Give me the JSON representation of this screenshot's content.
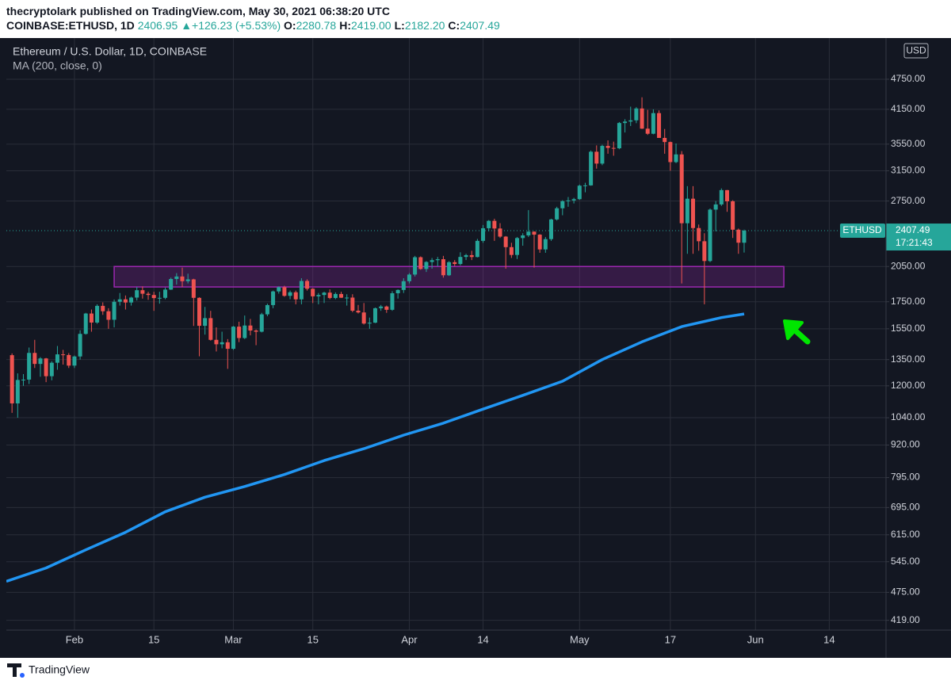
{
  "header": {
    "publisher_line": "thecryptolark published on TradingView.com, May 30, 2021 06:38:20 UTC",
    "symbol": "COINBASE:ETHUSD, 1D",
    "price": "2406.95",
    "change": "+126.23 (+5.53%)",
    "ohlc": [
      {
        "label": "O:",
        "value": "2280.78"
      },
      {
        "label": "H:",
        "value": "2419.00"
      },
      {
        "label": "L:",
        "value": "2182.20"
      },
      {
        "label": "C:",
        "value": "2407.49"
      }
    ]
  },
  "footer": {
    "brand": "TradingView"
  },
  "chart_data": {
    "type": "candlestick",
    "title": "Ethereum / U.S. Dollar, 1D, COINBASE",
    "currency": "USD",
    "up_color": "#26a69a",
    "down_color": "#ef5350",
    "yscale": "log",
    "grid": true,
    "ylim": [
      401,
      5714
    ],
    "yticks": [
      {
        "value": 4750,
        "label": "4750.00"
      },
      {
        "value": 4150,
        "label": "4150.00"
      },
      {
        "value": 3550,
        "label": "3550.00"
      },
      {
        "value": 3150,
        "label": "3150.00"
      },
      {
        "value": 2750,
        "label": "2750.00"
      },
      {
        "value": 2050,
        "label": "2050.00"
      },
      {
        "value": 1750,
        "label": "1750.00"
      },
      {
        "value": 1550,
        "label": "1550.00"
      },
      {
        "value": 1350,
        "label": "1350.00"
      },
      {
        "value": 1200,
        "label": "1200.00"
      },
      {
        "value": 1040,
        "label": "1040.00"
      },
      {
        "value": 920,
        "label": "920.00"
      },
      {
        "value": 795,
        "label": "795.00"
      },
      {
        "value": 695,
        "label": "695.00"
      },
      {
        "value": 615,
        "label": "615.00"
      },
      {
        "value": 545,
        "label": "545.00"
      },
      {
        "value": 475,
        "label": "475.00"
      },
      {
        "value": 419,
        "label": "419.00"
      }
    ],
    "xlim": [
      "01-20",
      "06-24"
    ],
    "xticks": [
      {
        "value": "02-01",
        "label": "Feb"
      },
      {
        "value": "02-15",
        "label": "15"
      },
      {
        "value": "03-01",
        "label": "Mar"
      },
      {
        "value": "03-15",
        "label": "15"
      },
      {
        "value": "04-01",
        "label": "Apr"
      },
      {
        "value": "04-14",
        "label": "14"
      },
      {
        "value": "05-01",
        "label": "May"
      },
      {
        "value": "05-17",
        "label": "17"
      },
      {
        "value": "06-01",
        "label": "Jun"
      },
      {
        "value": "06-14",
        "label": "14"
      }
    ],
    "x": [
      "01-21",
      "01-22",
      "01-23",
      "01-24",
      "01-25",
      "01-26",
      "01-27",
      "01-28",
      "01-29",
      "01-30",
      "01-31",
      "02-01",
      "02-02",
      "02-03",
      "02-04",
      "02-05",
      "02-06",
      "02-07",
      "02-08",
      "02-09",
      "02-10",
      "02-11",
      "02-12",
      "02-13",
      "02-14",
      "02-15",
      "02-16",
      "02-17",
      "02-18",
      "02-19",
      "02-20",
      "02-21",
      "02-22",
      "02-23",
      "02-24",
      "02-25",
      "02-26",
      "02-27",
      "02-28",
      "03-01",
      "03-02",
      "03-03",
      "03-04",
      "03-05",
      "03-06",
      "03-07",
      "03-08",
      "03-09",
      "03-10",
      "03-11",
      "03-12",
      "03-13",
      "03-14",
      "03-15",
      "03-16",
      "03-17",
      "03-18",
      "03-19",
      "03-20",
      "03-21",
      "03-22",
      "03-23",
      "03-24",
      "03-25",
      "03-26",
      "03-27",
      "03-28",
      "03-29",
      "03-30",
      "03-31",
      "04-01",
      "04-02",
      "04-03",
      "04-04",
      "04-05",
      "04-06",
      "04-07",
      "04-08",
      "04-09",
      "04-10",
      "04-11",
      "04-12",
      "04-13",
      "04-14",
      "04-15",
      "04-16",
      "04-17",
      "04-18",
      "04-19",
      "04-20",
      "04-21",
      "04-22",
      "04-23",
      "04-24",
      "04-25",
      "04-26",
      "04-27",
      "04-28",
      "04-29",
      "04-30",
      "05-01",
      "05-02",
      "05-03",
      "05-04",
      "05-05",
      "05-06",
      "05-07",
      "05-08",
      "05-09",
      "05-10",
      "05-11",
      "05-12",
      "05-13",
      "05-14",
      "05-15",
      "05-16",
      "05-17",
      "05-18",
      "05-19",
      "05-20",
      "05-21",
      "05-22",
      "05-23",
      "05-24",
      "05-25",
      "05-26",
      "05-27",
      "05-28",
      "05-29",
      "05-30"
    ],
    "open": [
      1377,
      1109,
      1232,
      1234,
      1391,
      1324,
      1357,
      1253,
      1331,
      1382,
      1378,
      1314,
      1369,
      1515,
      1660,
      1594,
      1718,
      1677,
      1614,
      1750,
      1769,
      1744,
      1783,
      1843,
      1814,
      1804,
      1779,
      1781,
      1848,
      1938,
      1960,
      1919,
      1935,
      1781,
      1571,
      1626,
      1475,
      1446,
      1459,
      1417,
      1565,
      1487,
      1573,
      1538,
      1530,
      1654,
      1724,
      1833,
      1868,
      1797,
      1826,
      1769,
      1921,
      1855,
      1793,
      1804,
      1823,
      1780,
      1812,
      1782,
      1783,
      1681,
      1668,
      1587,
      1593,
      1700,
      1713,
      1688,
      1818,
      1845,
      1919,
      1977,
      2137,
      2027,
      2092,
      2109,
      2118,
      1971,
      2090,
      2073,
      2140,
      2157,
      2139,
      2300,
      2434,
      2516,
      2431,
      2344,
      2236,
      2159,
      2329,
      2357,
      2397,
      2365,
      2213,
      2318,
      2532,
      2662,
      2748,
      2757,
      2773,
      2946,
      2950,
      3431,
      3253,
      3522,
      3490,
      3484,
      3903,
      3928,
      3950,
      4166,
      3805,
      3719,
      4080,
      3650,
      3583,
      3275,
      3390,
      2489,
      2779,
      2436,
      2296,
      2101,
      2646,
      2708,
      2888,
      2747,
      2418,
      2280.78
    ],
    "high": [
      1388,
      1269,
      1265,
      1425,
      1475,
      1365,
      1360,
      1340,
      1435,
      1410,
      1390,
      1375,
      1540,
      1665,
      1690,
      1730,
      1745,
      1700,
      1768,
      1820,
      1800,
      1790,
      1870,
      1875,
      1830,
      1830,
      1830,
      1865,
      1950,
      1990,
      2040,
      1985,
      1940,
      1785,
      1710,
      1680,
      1560,
      1530,
      1480,
      1570,
      1600,
      1645,
      1620,
      1545,
      1665,
      1735,
      1840,
      1875,
      1880,
      1840,
      1840,
      1945,
      1935,
      1860,
      1820,
      1830,
      1850,
      1825,
      1830,
      1810,
      1810,
      1725,
      1740,
      1630,
      1705,
      1725,
      1720,
      1835,
      1850,
      1945,
      1990,
      2150,
      2145,
      2100,
      2130,
      2140,
      2150,
      2100,
      2110,
      2185,
      2170,
      2200,
      2320,
      2470,
      2525,
      2540,
      2490,
      2350,
      2280,
      2340,
      2380,
      2640,
      2400,
      2370,
      2340,
      2540,
      2680,
      2760,
      2800,
      2790,
      2960,
      2985,
      3450,
      3530,
      3540,
      3610,
      3590,
      3920,
      3970,
      4200,
      4190,
      4380,
      4140,
      4150,
      4130,
      3800,
      3590,
      3560,
      3440,
      2940,
      2940,
      2475,
      2380,
      2660,
      2750,
      2910,
      2890,
      2760,
      2430,
      2419
    ],
    "low": [
      1063,
      1040,
      1200,
      1210,
      1300,
      1250,
      1220,
      1230,
      1290,
      1320,
      1300,
      1300,
      1350,
      1510,
      1530,
      1585,
      1650,
      1550,
      1560,
      1720,
      1690,
      1720,
      1760,
      1775,
      1765,
      1680,
      1735,
      1770,
      1845,
      1890,
      1870,
      1900,
      1570,
      1370,
      1510,
      1470,
      1400,
      1420,
      1295,
      1410,
      1460,
      1480,
      1505,
      1440,
      1525,
      1640,
      1700,
      1815,
      1790,
      1770,
      1730,
      1730,
      1840,
      1740,
      1730,
      1740,
      1770,
      1770,
      1780,
      1720,
      1670,
      1660,
      1580,
      1550,
      1590,
      1680,
      1665,
      1680,
      1775,
      1820,
      1900,
      1960,
      2020,
      2000,
      2030,
      2050,
      1950,
      1965,
      2055,
      2060,
      2110,
      2110,
      2135,
      2280,
      2400,
      2300,
      2330,
      2030,
      2130,
      2120,
      2250,
      2340,
      2040,
      2180,
      2180,
      2300,
      2520,
      2580,
      2680,
      2720,
      2765,
      2860,
      2945,
      3180,
      3230,
      3400,
      3370,
      3470,
      3740,
      3850,
      3900,
      3800,
      3700,
      3710,
      3650,
      3400,
      3150,
      3260,
      1900,
      2170,
      2170,
      2200,
      1730,
      2090,
      2400,
      2690,
      2620,
      2330,
      2170,
      2182.2
    ],
    "close": [
      1109,
      1232,
      1234,
      1391,
      1324,
      1357,
      1253,
      1331,
      1382,
      1378,
      1314,
      1369,
      1515,
      1660,
      1594,
      1718,
      1677,
      1614,
      1750,
      1769,
      1744,
      1783,
      1843,
      1814,
      1804,
      1779,
      1781,
      1848,
      1938,
      1960,
      1919,
      1935,
      1781,
      1571,
      1626,
      1475,
      1446,
      1459,
      1417,
      1565,
      1487,
      1573,
      1538,
      1530,
      1654,
      1724,
      1833,
      1868,
      1797,
      1826,
      1769,
      1921,
      1855,
      1793,
      1804,
      1823,
      1780,
      1812,
      1782,
      1783,
      1681,
      1668,
      1587,
      1593,
      1700,
      1713,
      1688,
      1818,
      1845,
      1919,
      1977,
      2137,
      2027,
      2092,
      2109,
      2118,
      1971,
      2090,
      2073,
      2140,
      2157,
      2139,
      2300,
      2434,
      2516,
      2431,
      2344,
      2236,
      2159,
      2329,
      2357,
      2397,
      2365,
      2213,
      2318,
      2532,
      2662,
      2748,
      2757,
      2773,
      2946,
      2950,
      3431,
      3253,
      3522,
      3490,
      3484,
      3903,
      3928,
      3950,
      4166,
      3805,
      3719,
      4080,
      3650,
      3583,
      3275,
      3390,
      2489,
      2779,
      2436,
      2296,
      2101,
      2646,
      2708,
      2888,
      2747,
      2418,
      2281,
      2407.49
    ],
    "indicator": {
      "name": "MA (200, close, 0)",
      "color": "#2196f3",
      "x": [
        "01-20",
        "01-27",
        "02-03",
        "02-10",
        "02-17",
        "02-24",
        "03-03",
        "03-10",
        "03-17",
        "03-24",
        "03-31",
        "04-07",
        "04-14",
        "04-21",
        "04-28",
        "05-05",
        "05-12",
        "05-19",
        "05-26",
        "05-30"
      ],
      "values": [
        499,
        530,
        575,
        622,
        682,
        728,
        764,
        806,
        858,
        905,
        962,
        1015,
        1081,
        1150,
        1225,
        1350,
        1462,
        1565,
        1630,
        1657
      ]
    },
    "zone": {
      "x": [
        "02-08",
        "06-06"
      ],
      "y": [
        1870,
        2050
      ],
      "color": "#9c27b0"
    },
    "last_price": {
      "symbol": "ETHUSD",
      "value": 2407.49,
      "countdown": "17:21:43"
    }
  }
}
